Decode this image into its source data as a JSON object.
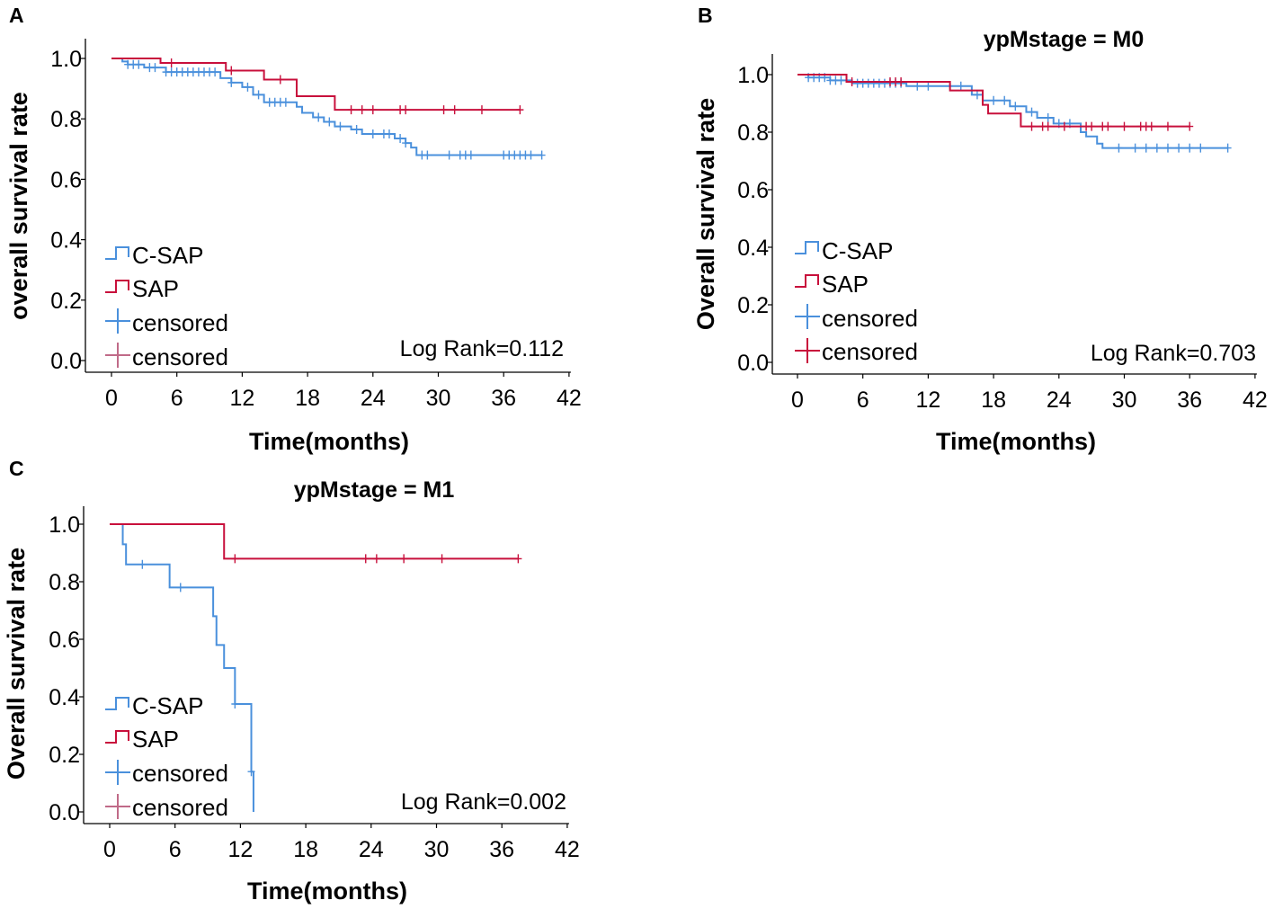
{
  "colors": {
    "csap": "#4a90dc",
    "sap": "#c8103c",
    "sap_cens_light": "#c06a88",
    "axis": "#000000"
  },
  "chart_data": [
    {
      "type": "line",
      "panel_label": "A",
      "title": "",
      "xlabel": "Time(months)",
      "ylabel": "overall survival rate",
      "xlim": [
        0,
        42
      ],
      "ylim": [
        0,
        1.0
      ],
      "xticks": [
        "0",
        "6",
        "12",
        "18",
        "24",
        "30",
        "36",
        "42"
      ],
      "yticks": [
        "0.0",
        "0.2",
        "0.4",
        "0.6",
        "0.8",
        "1.0"
      ],
      "legend": [
        "C-SAP",
        "SAP",
        "censored",
        "censored"
      ],
      "legend_position": "bottom-left",
      "annotation": "Log Rank=0.112",
      "series": [
        {
          "name": "C-SAP",
          "steps": [
            [
              0,
              1.0
            ],
            [
              1,
              0.99
            ],
            [
              1.5,
              0.98
            ],
            [
              3,
              0.97
            ],
            [
              5,
              0.955
            ],
            [
              10,
              0.935
            ],
            [
              11,
              0.92
            ],
            [
              12,
              0.905
            ],
            [
              13,
              0.88
            ],
            [
              14,
              0.855
            ],
            [
              17,
              0.84
            ],
            [
              17.5,
              0.82
            ],
            [
              18.5,
              0.805
            ],
            [
              19.5,
              0.79
            ],
            [
              20.5,
              0.775
            ],
            [
              22,
              0.765
            ],
            [
              23,
              0.75
            ],
            [
              26,
              0.735
            ],
            [
              27,
              0.72
            ],
            [
              27.5,
              0.705
            ],
            [
              28,
              0.68
            ],
            [
              39.5,
              0.68
            ]
          ],
          "censored": [
            1.5,
            2,
            2.5,
            3.5,
            4,
            5,
            5.5,
            6,
            6.5,
            7,
            7.5,
            8,
            8.5,
            9,
            9.5,
            11,
            12.5,
            13.5,
            14.5,
            15,
            15.5,
            16,
            19,
            20,
            21,
            22.5,
            24,
            25,
            25.5,
            26.5,
            27,
            28.5,
            29,
            31,
            32,
            32.5,
            33,
            36,
            36.5,
            37,
            37.5,
            38,
            38.5,
            39.5
          ]
        },
        {
          "name": "SAP",
          "steps": [
            [
              0,
              1.0
            ],
            [
              4.5,
              0.985
            ],
            [
              10.5,
              0.96
            ],
            [
              14,
              0.93
            ],
            [
              17,
              0.875
            ],
            [
              20.5,
              0.83
            ],
            [
              37.5,
              0.83
            ]
          ],
          "censored": [
            5.5,
            11,
            15.5,
            22,
            23,
            24,
            26.5,
            27,
            30.5,
            31.5,
            34,
            37.5
          ]
        }
      ]
    },
    {
      "type": "line",
      "panel_label": "B",
      "title": "ypMstage = M0",
      "xlabel": "Time(months)",
      "ylabel": "Overall survival rate",
      "xlim": [
        0,
        42
      ],
      "ylim": [
        0,
        1.0
      ],
      "xticks": [
        "0",
        "6",
        "12",
        "18",
        "24",
        "30",
        "36",
        "42"
      ],
      "yticks": [
        "0.0",
        "0.2",
        "0.4",
        "0.6",
        "0.8",
        "1.0"
      ],
      "legend": [
        "C-SAP",
        "SAP",
        "censored",
        "censored"
      ],
      "legend_position": "bottom-left",
      "annotation": "Log Rank=0.703",
      "series": [
        {
          "name": "C-SAP",
          "steps": [
            [
              0,
              1.0
            ],
            [
              1,
              0.99
            ],
            [
              3,
              0.98
            ],
            [
              5,
              0.97
            ],
            [
              10,
              0.96
            ],
            [
              16,
              0.93
            ],
            [
              17,
              0.91
            ],
            [
              19.5,
              0.89
            ],
            [
              21,
              0.87
            ],
            [
              22,
              0.85
            ],
            [
              23.5,
              0.83
            ],
            [
              26,
              0.8
            ],
            [
              26.5,
              0.785
            ],
            [
              27.5,
              0.76
            ],
            [
              28,
              0.745
            ],
            [
              39.5,
              0.745
            ]
          ],
          "censored": [
            1,
            1.5,
            2,
            2.5,
            3,
            3.5,
            4,
            5.5,
            6,
            6.5,
            7,
            7.5,
            8,
            8.5,
            9,
            9.5,
            11,
            12,
            14,
            15,
            16.5,
            18,
            19,
            20,
            21.5,
            23,
            24,
            25,
            29.5,
            31,
            32,
            33,
            34,
            35,
            36,
            37,
            39.5
          ]
        },
        {
          "name": "SAP",
          "steps": [
            [
              0,
              1.0
            ],
            [
              4.5,
              0.975
            ],
            [
              14,
              0.945
            ],
            [
              17,
              0.895
            ],
            [
              17.5,
              0.865
            ],
            [
              20.5,
              0.82
            ],
            [
              36,
              0.82
            ]
          ],
          "censored": [
            5,
            8.5,
            9,
            9.5,
            21.5,
            22.5,
            23,
            24.5,
            26.5,
            27,
            28,
            28.5,
            30,
            31.5,
            32,
            32.5,
            34,
            36
          ]
        }
      ]
    },
    {
      "type": "line",
      "panel_label": "C",
      "title": "ypMstage = M1",
      "xlabel": "Time(months)",
      "ylabel": "Overall survival rate",
      "xlim": [
        0,
        42
      ],
      "ylim": [
        0,
        1.0
      ],
      "xticks": [
        "0",
        "6",
        "12",
        "18",
        "24",
        "30",
        "36",
        "42"
      ],
      "yticks": [
        "0.0",
        "0.2",
        "0.4",
        "0.6",
        "0.8",
        "1.0"
      ],
      "legend": [
        "C-SAP",
        "SAP",
        "censored",
        "censored"
      ],
      "legend_position": "bottom-left",
      "annotation": "Log Rank=0.002",
      "series": [
        {
          "name": "C-SAP",
          "steps": [
            [
              0,
              1.0
            ],
            [
              1.2,
              0.93
            ],
            [
              1.5,
              0.86
            ],
            [
              5.5,
              0.78
            ],
            [
              9.5,
              0.68
            ],
            [
              9.8,
              0.58
            ],
            [
              10.5,
              0.5
            ],
            [
              11.5,
              0.375
            ],
            [
              13,
              0.14
            ],
            [
              13.2,
              0.0
            ]
          ],
          "censored": [
            3,
            6.5,
            11.5,
            13
          ]
        },
        {
          "name": "SAP",
          "steps": [
            [
              0,
              1.0
            ],
            [
              10.5,
              0.88
            ],
            [
              37.5,
              0.88
            ]
          ],
          "censored": [
            11.5,
            23.5,
            24.5,
            27,
            30.5,
            37.5
          ]
        }
      ]
    }
  ]
}
